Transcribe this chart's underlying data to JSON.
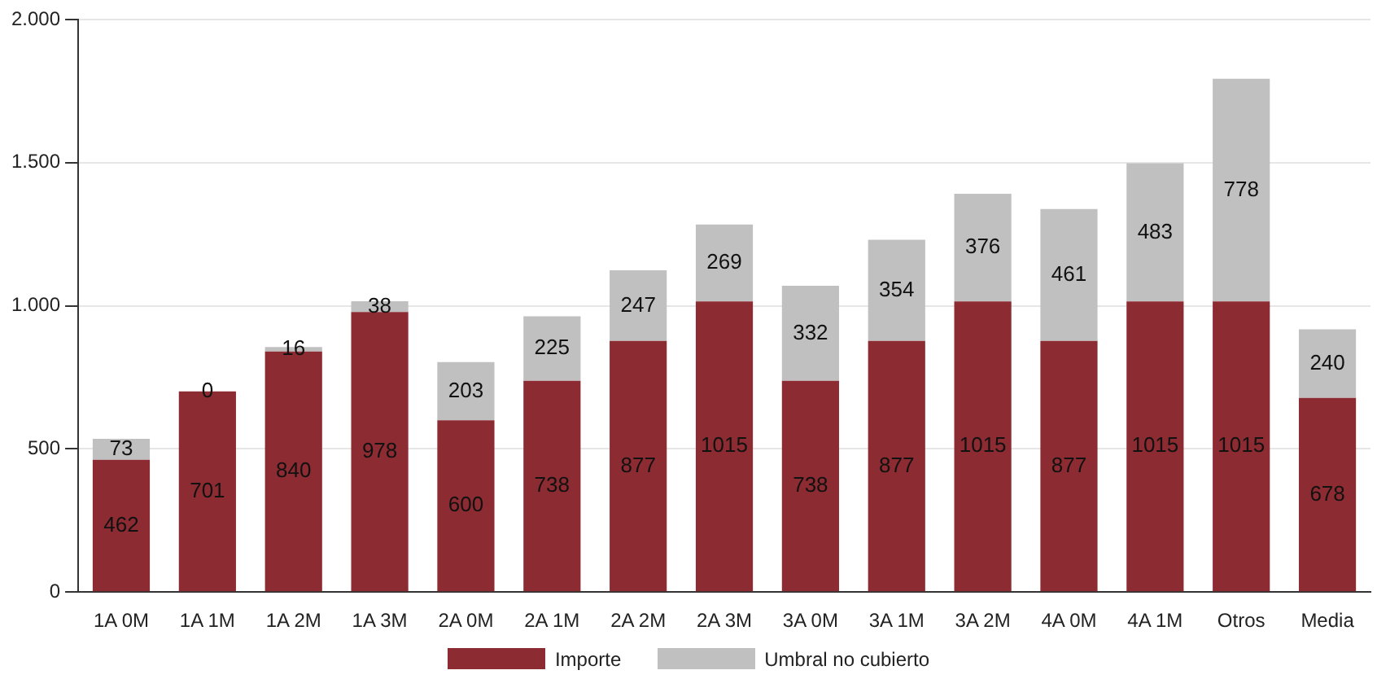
{
  "chart_data": {
    "type": "bar",
    "stacked": true,
    "categories": [
      "1A 0M",
      "1A 1M",
      "1A 2M",
      "1A 3M",
      "2A 0M",
      "2A 1M",
      "2A 2M",
      "2A 3M",
      "3A 0M",
      "3A 1M",
      "3A 2M",
      "4A 0M",
      "4A 1M",
      "Otros",
      "Media"
    ],
    "series": [
      {
        "name": "Importe",
        "color": "#8c2b31",
        "values": [
          462,
          701,
          840,
          978,
          600,
          738,
          877,
          1015,
          738,
          877,
          1015,
          877,
          1015,
          1015,
          678
        ]
      },
      {
        "name": "Umbral no cubierto",
        "color": "#c0c0c0",
        "values": [
          73,
          0,
          16,
          38,
          203,
          225,
          247,
          269,
          332,
          354,
          376,
          461,
          483,
          778,
          240
        ]
      }
    ],
    "ylim": [
      0,
      2000
    ],
    "yticks": [
      0,
      500,
      {
        "value": 1000,
        "label": "1.000"
      },
      {
        "value": 1500,
        "label": "1.500"
      },
      {
        "value": 2000,
        "label": "2.000"
      }
    ],
    "grid": "y",
    "legend": "bottom",
    "data_labels": true
  }
}
